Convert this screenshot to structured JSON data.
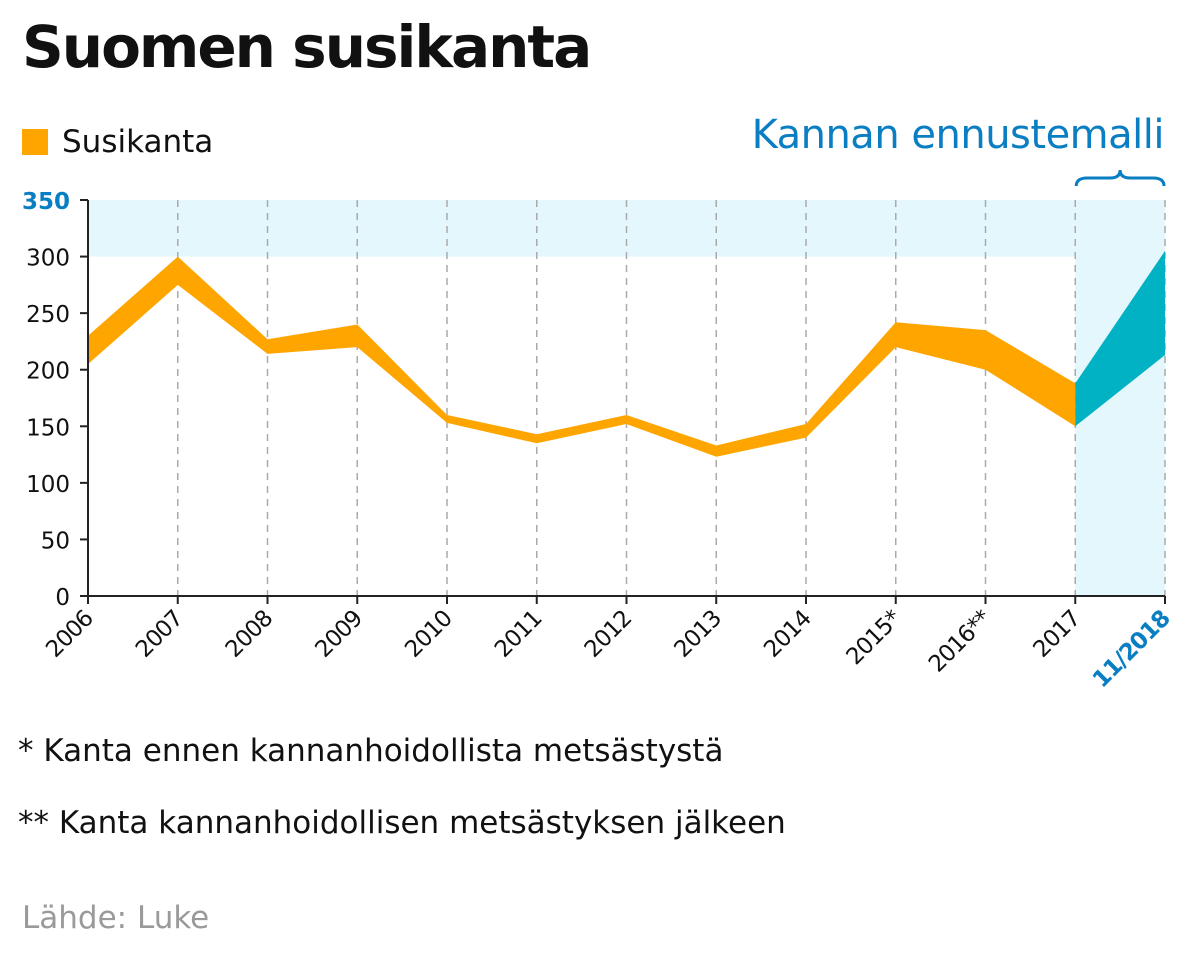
{
  "title": "Suomen susikanta",
  "legend": {
    "label": "Susikanta",
    "color": "#ffa500"
  },
  "forecast": {
    "label": "Kannan ennustemalli",
    "color": "#0a7ec2",
    "band_color": "#00b2c3",
    "background": "#e3f7fc"
  },
  "notes": [
    "* Kanta ennen kannanhoidollista metsästystä",
    "** Kanta kannanhoidollisen metsästyksen jälkeen"
  ],
  "source": "Lähde: Luke",
  "chart_data": {
    "type": "area",
    "categories": [
      "2006",
      "2007",
      "2008",
      "2009",
      "2010",
      "2011",
      "2012",
      "2013",
      "2014",
      "2015*",
      "2016**",
      "2017",
      "11/2018"
    ],
    "series": [
      {
        "name": "Susikanta",
        "color": "#ffa500",
        "lower": [
          205,
          275,
          214,
          220,
          153,
          135,
          152,
          123,
          140,
          220,
          200,
          150
        ],
        "upper": [
          230,
          300,
          227,
          240,
          160,
          143,
          160,
          133,
          152,
          242,
          235,
          188
        ]
      },
      {
        "color": "#00b2c3",
        "lower": [
          150,
          213
        ],
        "upper": [
          188,
          305
        ],
        "x": [
          "2017",
          "11/2018"
        ]
      }
    ],
    "forecast_categories": [
      "2017",
      "11/2018"
    ],
    "highlight_band": [
      300,
      350
    ],
    "ylim": [
      0,
      350
    ],
    "yticks": [
      0,
      50,
      100,
      150,
      200,
      250,
      300,
      350
    ],
    "highlighted_ticks": [
      "350",
      "11/2018"
    ],
    "grid": "vertical-dashed",
    "legend_position": "top-left"
  }
}
